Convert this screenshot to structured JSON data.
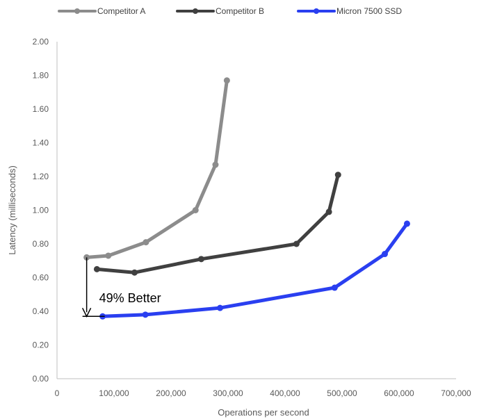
{
  "chart_data": {
    "type": "line",
    "title": "",
    "xlabel": "Operations per second",
    "ylabel": "Latency (milliseconds)",
    "xlim": [
      0,
      700000
    ],
    "ylim": [
      0,
      2.0
    ],
    "x_ticks": [
      0,
      100000,
      200000,
      300000,
      400000,
      500000,
      600000,
      700000
    ],
    "x_tick_labels": [
      "0",
      "100,000",
      "200,000",
      "300,000",
      "400,000",
      "500,000",
      "600,000",
      "700,000"
    ],
    "y_ticks": [
      0,
      0.2,
      0.4,
      0.6,
      0.8,
      1.0,
      1.2,
      1.4,
      1.6,
      1.8,
      2.0
    ],
    "y_tick_labels": [
      "0.00",
      "0.20",
      "0.40",
      "0.60",
      "0.80",
      "1.00",
      "1.20",
      "1.40",
      "1.60",
      "1.80",
      "2.00"
    ],
    "grid": false,
    "legend_position": "top",
    "series": [
      {
        "name": "Competitor A",
        "color": "#8c8c8c",
        "points": [
          [
            52000,
            0.72
          ],
          [
            90000,
            0.73
          ],
          [
            156000,
            0.81
          ],
          [
            243000,
            1.0
          ],
          [
            278000,
            1.27
          ],
          [
            298000,
            1.77
          ]
        ]
      },
      {
        "name": "Competitor B",
        "color": "#404040",
        "points": [
          [
            70000,
            0.65
          ],
          [
            136000,
            0.63
          ],
          [
            253000,
            0.71
          ],
          [
            420000,
            0.8
          ],
          [
            477000,
            0.99
          ],
          [
            493000,
            1.21
          ]
        ]
      },
      {
        "name": "Micron 7500 SSD",
        "color": "#2a3ff0",
        "points": [
          [
            80000,
            0.37
          ],
          [
            155000,
            0.38
          ],
          [
            286000,
            0.42
          ],
          [
            487000,
            0.54
          ],
          [
            575000,
            0.74
          ],
          [
            614000,
            0.92
          ]
        ]
      }
    ],
    "annotations": [
      {
        "text": "49% Better",
        "x_from": 52000,
        "y_from": 0.72,
        "y_to": 0.37
      }
    ]
  }
}
